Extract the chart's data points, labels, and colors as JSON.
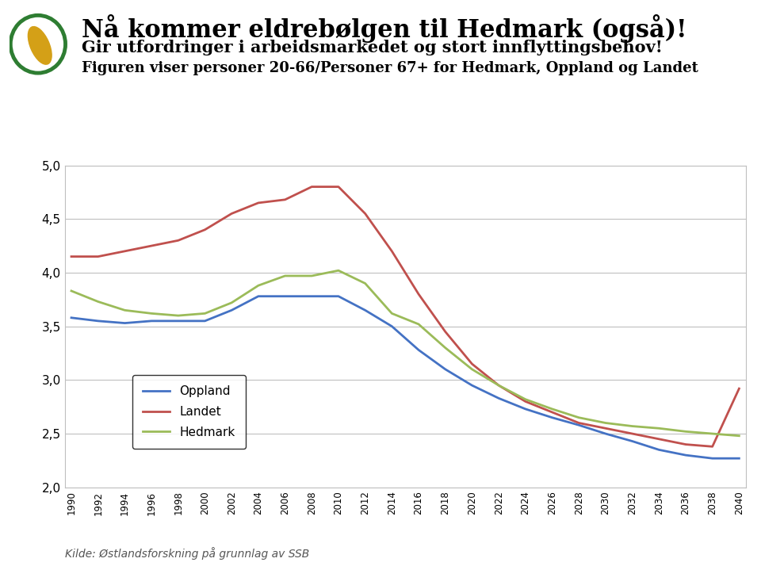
{
  "title1": "Nå kommer eldrebølgen til Hedmark (også)!",
  "title2": "Gir utfordringer i arbeidsmarkedet og stort innflyttingsbehov!",
  "title3": "Figuren viser personer 20-66/Personer 67+ for Hedmark, Oppland og Landet",
  "source": "Kilde: Østlandsforskning på grunnlag av SSB",
  "years": [
    1990,
    1992,
    1994,
    1996,
    1998,
    2000,
    2002,
    2004,
    2006,
    2008,
    2010,
    2012,
    2014,
    2016,
    2018,
    2020,
    2022,
    2024,
    2026,
    2028,
    2030,
    2032,
    2034,
    2036,
    2038,
    2040
  ],
  "oppland": [
    3.58,
    3.55,
    3.53,
    3.55,
    3.55,
    3.55,
    3.65,
    3.78,
    3.78,
    3.78,
    3.78,
    3.65,
    3.5,
    3.28,
    3.1,
    2.95,
    2.83,
    2.73,
    2.65,
    2.58,
    2.5,
    2.43,
    2.35,
    2.3,
    2.27,
    2.27
  ],
  "landet": [
    4.15,
    4.15,
    4.2,
    4.25,
    4.3,
    4.4,
    4.55,
    4.65,
    4.68,
    4.8,
    4.8,
    4.55,
    4.2,
    3.8,
    3.45,
    3.15,
    2.95,
    2.8,
    2.7,
    2.6,
    2.55,
    2.5,
    2.45,
    2.4,
    2.38,
    2.92
  ],
  "hedmark": [
    3.83,
    3.73,
    3.65,
    3.62,
    3.6,
    3.62,
    3.72,
    3.88,
    3.97,
    3.97,
    4.02,
    3.9,
    3.62,
    3.52,
    3.3,
    3.1,
    2.95,
    2.82,
    2.73,
    2.65,
    2.6,
    2.57,
    2.55,
    2.52,
    2.5,
    2.48
  ],
  "oppland_color": "#4472C4",
  "landet_color": "#C0504D",
  "hedmark_color": "#9BBB59",
  "ylim": [
    2.0,
    5.0
  ],
  "yticks": [
    2.0,
    2.5,
    3.0,
    3.5,
    4.0,
    4.5,
    5.0
  ],
  "background_color": "#FFFFFF",
  "grid_color": "#BFBFBF",
  "line_width": 2.0,
  "logo_circle_color": "#2E7D32",
  "logo_leaf_color": "#D4A017",
  "title1_fontsize": 22,
  "title2_fontsize": 15,
  "title3_fontsize": 13,
  "source_fontsize": 10
}
